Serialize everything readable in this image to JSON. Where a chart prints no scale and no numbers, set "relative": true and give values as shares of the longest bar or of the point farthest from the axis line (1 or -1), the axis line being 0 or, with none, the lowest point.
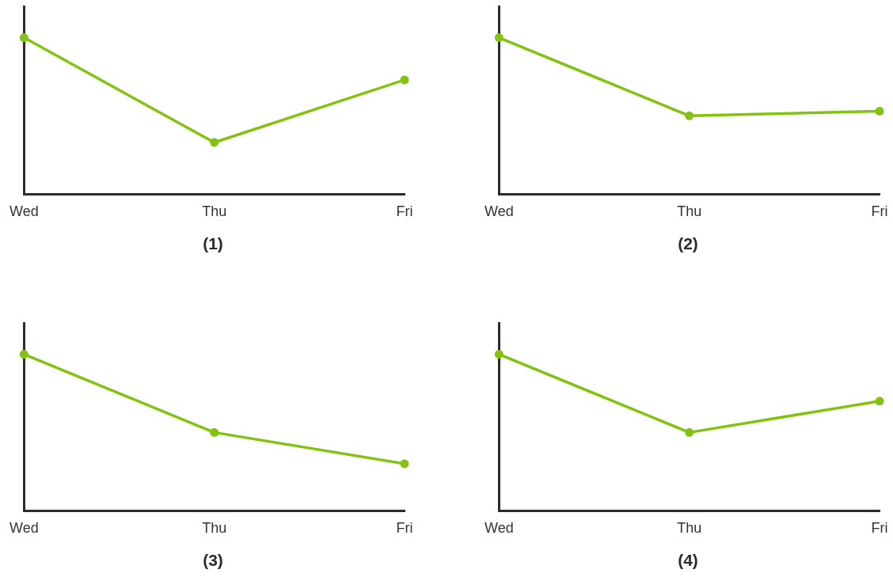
{
  "chart_data": [
    {
      "type": "line",
      "title": "(1)",
      "categories": [
        "Wed",
        "Thu",
        "Fri"
      ],
      "series": [
        {
          "color": "#82c30f",
          "values": [
            1,
            0.33,
            0.73
          ]
        }
      ],
      "relative": true,
      "marker": "circle"
    },
    {
      "type": "line",
      "title": "(2)",
      "categories": [
        "Wed",
        "Thu",
        "Fri"
      ],
      "series": [
        {
          "color": "#82c30f",
          "values": [
            1,
            0.5,
            0.53
          ]
        }
      ],
      "relative": true,
      "marker": "circle"
    },
    {
      "type": "line",
      "title": "(3)",
      "categories": [
        "Wed",
        "Thu",
        "Fri"
      ],
      "series": [
        {
          "color": "#82c30f",
          "values": [
            1,
            0.5,
            0.3
          ]
        }
      ],
      "relative": true,
      "marker": "circle"
    },
    {
      "type": "line",
      "title": "(4)",
      "categories": [
        "Wed",
        "Thu",
        "Fri"
      ],
      "series": [
        {
          "color": "#82c30f",
          "values": [
            1,
            0.5,
            0.7
          ]
        }
      ],
      "relative": true,
      "marker": "circle"
    }
  ]
}
